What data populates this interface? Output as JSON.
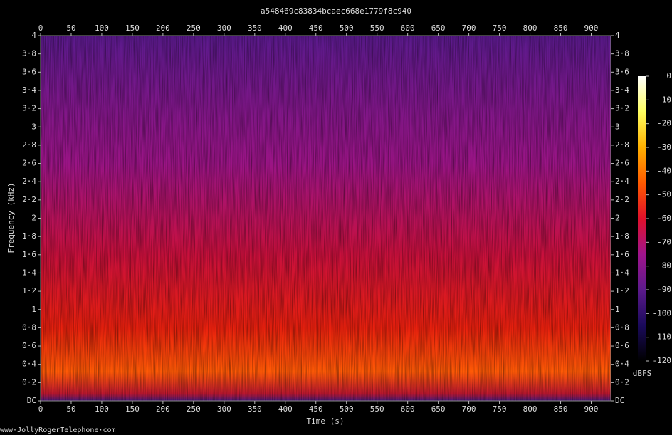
{
  "chart_data": {
    "type": "spectrogram",
    "title": "a548469c83834bcaec668e1779f8c940",
    "x_label": "Time (s)",
    "y_label": "Frequency (kHz)",
    "footer": "www·JollyRogerTelephone·com",
    "xlim": [
      0,
      932
    ],
    "xticks": [
      0,
      50,
      100,
      150,
      200,
      250,
      300,
      350,
      400,
      450,
      500,
      550,
      600,
      650,
      700,
      750,
      800,
      850,
      900
    ],
    "ylim": [
      0,
      4
    ],
    "yticks": [
      {
        "value": 0,
        "label": "DC"
      },
      {
        "value": 0.2,
        "label": "0·2"
      },
      {
        "value": 0.4,
        "label": "0·4"
      },
      {
        "value": 0.6,
        "label": "0·6"
      },
      {
        "value": 0.8,
        "label": "0·8"
      },
      1,
      {
        "value": 1.2,
        "label": "1·2"
      },
      {
        "value": 1.4,
        "label": "1·4"
      },
      {
        "value": 1.6,
        "label": "1·6"
      },
      {
        "value": 1.8,
        "label": "1·8"
      },
      2,
      {
        "value": 2.2,
        "label": "2·2"
      },
      {
        "value": 2.4,
        "label": "2·4"
      },
      {
        "value": 2.6,
        "label": "2·6"
      },
      {
        "value": 2.8,
        "label": "2·8"
      },
      3,
      {
        "value": 3.2,
        "label": "3·2"
      },
      {
        "value": 3.4,
        "label": "3·4"
      },
      {
        "value": 3.6,
        "label": "3·6"
      },
      {
        "value": 3.8,
        "label": "3·8"
      },
      4
    ],
    "colorbar": {
      "label": "dBFS",
      "lim": [
        -120,
        0
      ],
      "ticks": [
        -120,
        -110,
        -100,
        -90,
        -80,
        -70,
        -60,
        -50,
        -40,
        -30,
        -20,
        -10,
        0
      ],
      "colors": [
        "#000000",
        "#1a0a5c",
        "#5c1a8c",
        "#a0148c",
        "#e0102a",
        "#ff5a00",
        "#ffb000",
        "#ffff60",
        "#ffffff"
      ]
    }
  }
}
